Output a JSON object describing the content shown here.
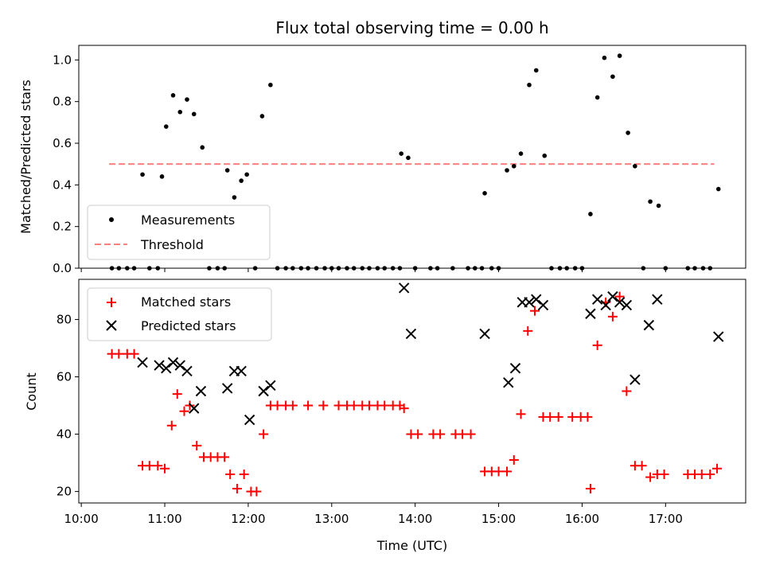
{
  "chart_data": [
    {
      "type": "scatter",
      "title": "Flux total observing time = 0.00 h",
      "xlabel": "",
      "ylabel": "Matched/Predicted stars",
      "xlim": [
        "10:00",
        "18:00"
      ],
      "ylim": [
        0,
        1.07
      ],
      "yticks": [
        "0.0",
        "0.2",
        "0.4",
        "0.6",
        "0.8",
        "1.0"
      ],
      "legend": {
        "placement": "lower-left",
        "entries": [
          "Measurements",
          "Threshold"
        ]
      },
      "threshold": {
        "name": "Threshold",
        "value": 0.5,
        "x_start": "10:20",
        "x_end": "17:35",
        "color": "#ff7f7f"
      },
      "series": [
        {
          "name": "Measurements",
          "color": "#000000",
          "marker": "dot",
          "points": [
            [
              "10:22",
              0
            ],
            [
              "10:27",
              0
            ],
            [
              "10:33",
              0
            ],
            [
              "10:38",
              0
            ],
            [
              "10:44",
              0.45
            ],
            [
              "10:49",
              0
            ],
            [
              "10:55",
              0
            ],
            [
              "10:58",
              0.44
            ],
            [
              "11:01",
              0.68
            ],
            [
              "11:06",
              0.83
            ],
            [
              "11:11",
              0.75
            ],
            [
              "11:16",
              0.81
            ],
            [
              "11:21",
              0.74
            ],
            [
              "11:27",
              0.58
            ],
            [
              "11:32",
              0
            ],
            [
              "11:38",
              0
            ],
            [
              "11:43",
              0
            ],
            [
              "11:45",
              0.47
            ],
            [
              "11:50",
              0.34
            ],
            [
              "11:55",
              0.42
            ],
            [
              "11:59",
              0.45
            ],
            [
              "12:05",
              0
            ],
            [
              "12:10",
              0.73
            ],
            [
              "12:16",
              0.88
            ],
            [
              "12:21",
              0
            ],
            [
              "12:27",
              0
            ],
            [
              "12:32",
              0
            ],
            [
              "12:38",
              0
            ],
            [
              "12:43",
              0
            ],
            [
              "12:49",
              0
            ],
            [
              "12:55",
              0
            ],
            [
              "13:00",
              0
            ],
            [
              "13:05",
              0
            ],
            [
              "13:11",
              0
            ],
            [
              "13:16",
              0
            ],
            [
              "13:22",
              0
            ],
            [
              "13:27",
              0
            ],
            [
              "13:33",
              0
            ],
            [
              "13:38",
              0
            ],
            [
              "13:44",
              0
            ],
            [
              "13:49",
              0
            ],
            [
              "13:50",
              0.55
            ],
            [
              "13:55",
              0.53
            ],
            [
              "14:00",
              0
            ],
            [
              "14:11",
              0
            ],
            [
              "14:16",
              0
            ],
            [
              "14:27",
              0
            ],
            [
              "14:38",
              0
            ],
            [
              "14:43",
              0
            ],
            [
              "14:48",
              0
            ],
            [
              "14:50",
              0.36
            ],
            [
              "14:55",
              0
            ],
            [
              "15:00",
              0
            ],
            [
              "15:06",
              0.47
            ],
            [
              "15:11",
              0.49
            ],
            [
              "15:16",
              0.55
            ],
            [
              "15:22",
              0.88
            ],
            [
              "15:27",
              0.95
            ],
            [
              "15:33",
              0.54
            ],
            [
              "15:38",
              0
            ],
            [
              "15:44",
              0
            ],
            [
              "15:49",
              0
            ],
            [
              "15:55",
              0
            ],
            [
              "16:00",
              0
            ],
            [
              "16:06",
              0.26
            ],
            [
              "16:11",
              0.82
            ],
            [
              "16:16",
              1.01
            ],
            [
              "16:22",
              0.92
            ],
            [
              "16:27",
              1.02
            ],
            [
              "16:33",
              0.65
            ],
            [
              "16:38",
              0.49
            ],
            [
              "16:44",
              0
            ],
            [
              "16:49",
              0.32
            ],
            [
              "16:55",
              0.3
            ],
            [
              "17:00",
              0
            ],
            [
              "17:16",
              0
            ],
            [
              "17:21",
              0
            ],
            [
              "17:27",
              0
            ],
            [
              "17:32",
              0
            ],
            [
              "17:38",
              0.38
            ]
          ]
        }
      ]
    },
    {
      "type": "scatter",
      "title": "",
      "xlabel": "Time (UTC)",
      "ylabel": "Count",
      "xlim": [
        "10:00",
        "18:00"
      ],
      "ylim": [
        16,
        94
      ],
      "xticks": [
        "10:00",
        "11:00",
        "12:00",
        "13:00",
        "14:00",
        "15:00",
        "16:00",
        "17:00"
      ],
      "yticks": [
        "20",
        "40",
        "60",
        "80"
      ],
      "legend": {
        "placement": "top-left",
        "entries": [
          "Matched stars",
          "Predicted stars"
        ]
      },
      "series": [
        {
          "name": "Matched stars",
          "color": "#ff0000",
          "marker": "plus",
          "points": [
            [
              "10:22",
              68
            ],
            [
              "10:27",
              68
            ],
            [
              "10:33",
              68
            ],
            [
              "10:38",
              68
            ],
            [
              "10:44",
              29
            ],
            [
              "10:49",
              29
            ],
            [
              "10:55",
              29
            ],
            [
              "11:00",
              28
            ],
            [
              "11:05",
              43
            ],
            [
              "11:09",
              54
            ],
            [
              "11:14",
              48
            ],
            [
              "11:18",
              50
            ],
            [
              "11:23",
              36
            ],
            [
              "11:28",
              32
            ],
            [
              "11:33",
              32
            ],
            [
              "11:38",
              32
            ],
            [
              "11:43",
              32
            ],
            [
              "11:47",
              26
            ],
            [
              "11:52",
              21
            ],
            [
              "11:57",
              26
            ],
            [
              "12:02",
              20
            ],
            [
              "12:06",
              20
            ],
            [
              "12:11",
              40
            ],
            [
              "12:16",
              50
            ],
            [
              "12:21",
              50
            ],
            [
              "12:27",
              50
            ],
            [
              "12:32",
              50
            ],
            [
              "12:43",
              50
            ],
            [
              "12:54",
              50
            ],
            [
              "13:05",
              50
            ],
            [
              "13:11",
              50
            ],
            [
              "13:16",
              50
            ],
            [
              "13:22",
              50
            ],
            [
              "13:27",
              50
            ],
            [
              "13:33",
              50
            ],
            [
              "13:38",
              50
            ],
            [
              "13:44",
              50
            ],
            [
              "13:49",
              50
            ],
            [
              "13:52",
              49
            ],
            [
              "13:57",
              40
            ],
            [
              "14:02",
              40
            ],
            [
              "14:13",
              40
            ],
            [
              "14:18",
              40
            ],
            [
              "14:29",
              40
            ],
            [
              "14:34",
              40
            ],
            [
              "14:40",
              40
            ],
            [
              "14:50",
              27
            ],
            [
              "14:55",
              27
            ],
            [
              "15:00",
              27
            ],
            [
              "15:06",
              27
            ],
            [
              "15:11",
              31
            ],
            [
              "15:16",
              47
            ],
            [
              "15:21",
              76
            ],
            [
              "15:26",
              83
            ],
            [
              "15:32",
              46
            ],
            [
              "15:37",
              46
            ],
            [
              "15:43",
              46
            ],
            [
              "15:53",
              46
            ],
            [
              "15:59",
              46
            ],
            [
              "16:04",
              46
            ],
            [
              "16:06",
              21
            ],
            [
              "16:11",
              71
            ],
            [
              "16:17",
              86
            ],
            [
              "16:22",
              81
            ],
            [
              "16:27",
              88
            ],
            [
              "16:32",
              55
            ],
            [
              "16:38",
              29
            ],
            [
              "16:43",
              29
            ],
            [
              "16:49",
              25
            ],
            [
              "16:54",
              26
            ],
            [
              "16:59",
              26
            ],
            [
              "17:16",
              26
            ],
            [
              "17:21",
              26
            ],
            [
              "17:26",
              26
            ],
            [
              "17:32",
              26
            ],
            [
              "17:37",
              28
            ]
          ]
        },
        {
          "name": "Predicted stars",
          "color": "#000000",
          "marker": "x",
          "points": [
            [
              "10:44",
              65
            ],
            [
              "10:56",
              64
            ],
            [
              "11:01",
              63
            ],
            [
              "11:06",
              65
            ],
            [
              "11:11",
              64
            ],
            [
              "11:16",
              62
            ],
            [
              "11:21",
              49
            ],
            [
              "11:26",
              55
            ],
            [
              "11:45",
              56
            ],
            [
              "11:50",
              62
            ],
            [
              "11:55",
              62
            ],
            [
              "12:01",
              45
            ],
            [
              "12:11",
              55
            ],
            [
              "12:16",
              57
            ],
            [
              "13:52",
              91
            ],
            [
              "13:57",
              75
            ],
            [
              "14:50",
              75
            ],
            [
              "15:07",
              58
            ],
            [
              "15:12",
              63
            ],
            [
              "15:17",
              86
            ],
            [
              "15:22",
              86
            ],
            [
              "15:27",
              87
            ],
            [
              "15:32",
              85
            ],
            [
              "16:06",
              82
            ],
            [
              "16:11",
              87
            ],
            [
              "16:17",
              85
            ],
            [
              "16:22",
              88
            ],
            [
              "16:27",
              86
            ],
            [
              "16:32",
              85
            ],
            [
              "16:38",
              59
            ],
            [
              "16:48",
              78
            ],
            [
              "16:54",
              87
            ],
            [
              "17:38",
              74
            ]
          ]
        }
      ]
    }
  ]
}
